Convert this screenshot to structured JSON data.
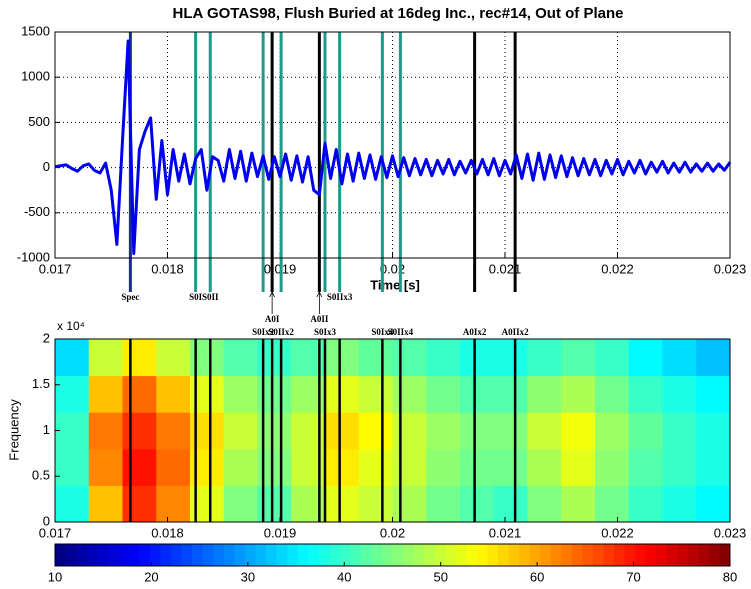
{
  "chart_data": [
    {
      "type": "line",
      "title": "HLA GOTAS98, Flush Buried at 16deg Inc., rec#14, Out of Plane",
      "x_label": "Time [s]",
      "x": [
        0.017,
        0.01705,
        0.0171,
        0.01715,
        0.0172,
        0.01725,
        0.0173,
        0.01735,
        0.0174,
        0.01745,
        0.0175,
        0.01755,
        0.0176,
        0.01765,
        0.0177,
        0.01775,
        0.0178,
        0.01785,
        0.0179,
        0.01795,
        0.018,
        0.01805,
        0.0181,
        0.01815,
        0.0182,
        0.01825,
        0.0183,
        0.01835,
        0.0184,
        0.01845,
        0.0185,
        0.01855,
        0.0186,
        0.01865,
        0.0187,
        0.01875,
        0.0188,
        0.01885,
        0.0189,
        0.01895,
        0.019,
        0.01905,
        0.0191,
        0.01915,
        0.0192,
        0.01925,
        0.0193,
        0.01935,
        0.0194,
        0.01945,
        0.0195,
        0.01955,
        0.0196,
        0.01965,
        0.0197,
        0.01975,
        0.0198,
        0.01985,
        0.0199,
        0.01995,
        0.02,
        0.02005,
        0.0201,
        0.02015,
        0.0202,
        0.02025,
        0.0203,
        0.02035,
        0.0204,
        0.02045,
        0.0205,
        0.02055,
        0.0206,
        0.02065,
        0.0207,
        0.02075,
        0.0208,
        0.02085,
        0.0209,
        0.02095,
        0.021,
        0.02105,
        0.0211,
        0.02115,
        0.0212,
        0.02125,
        0.0213,
        0.02135,
        0.0214,
        0.02145,
        0.0215,
        0.02155,
        0.0216,
        0.02165,
        0.0217,
        0.02175,
        0.0218,
        0.02185,
        0.0219,
        0.02195,
        0.022,
        0.02205,
        0.0221,
        0.02215,
        0.0222,
        0.02225,
        0.0223,
        0.02235,
        0.0224,
        0.02245,
        0.0225,
        0.02255,
        0.0226,
        0.02265,
        0.0227,
        0.02275,
        0.0228,
        0.02285,
        0.0229,
        0.02295,
        0.023
      ],
      "series": [
        {
          "color": "#0000ee",
          "values": [
            10,
            20,
            30,
            -10,
            -40,
            20,
            40,
            -30,
            -60,
            50,
            -250,
            -850,
            300,
            1400,
            -950,
            200,
            400,
            550,
            -350,
            300,
            -300,
            200,
            -150,
            150,
            -180,
            100,
            200,
            -250,
            120,
            80,
            -150,
            200,
            -120,
            180,
            -150,
            160,
            -100,
            130,
            -130,
            120,
            -100,
            150,
            -140,
            130,
            -160,
            120,
            -250,
            -300,
            270,
            -120,
            200,
            -180,
            150,
            -150,
            160,
            -120,
            140,
            -130,
            120,
            -110,
            130,
            -100,
            110,
            -90,
            100,
            -80,
            90,
            -90,
            80,
            -70,
            90,
            -80,
            70,
            -60,
            80,
            -70,
            90,
            -80,
            100,
            -90,
            80,
            -70,
            140,
            -120,
            150,
            -140,
            160,
            -130,
            140,
            -110,
            130,
            -100,
            110,
            -90,
            100,
            -80,
            90,
            -90,
            80,
            -70,
            90,
            -80,
            70,
            -60,
            80,
            -70,
            60,
            -50,
            70,
            -60,
            50,
            -50,
            60,
            -50,
            40,
            -40,
            50,
            -40,
            40,
            -30,
            60
          ]
        }
      ],
      "xlim": [
        0.017,
        0.023
      ],
      "xticks": [
        0.017,
        0.018,
        0.019,
        0.02,
        0.021,
        0.022,
        0.023
      ],
      "ylim": [
        -1000,
        1500
      ],
      "yticks": [
        -1000,
        -500,
        0,
        500,
        1000,
        1500
      ],
      "grid": true,
      "markers": [
        {
          "x": 0.01767,
          "label": "Spec",
          "color": "#1a2a9a"
        },
        {
          "x": 0.01825,
          "label": "S0I",
          "color": "#1f9a8a"
        },
        {
          "x": 0.01838,
          "label": "S0II",
          "color": "#1f9a8a"
        },
        {
          "x": 0.01885,
          "label": "S0Ix2",
          "color": "#1f9a8a"
        },
        {
          "x": 0.01893,
          "label": "A0I",
          "color": "#000000"
        },
        {
          "x": 0.01901,
          "label": "S0IIx2",
          "color": "#1f9a8a"
        },
        {
          "x": 0.01935,
          "label": "A0II",
          "color": "#000000"
        },
        {
          "x": 0.0194,
          "label": "S0Ix3",
          "color": "#1f9a8a"
        },
        {
          "x": 0.01953,
          "label": "S0IIx3",
          "color": "#1f9a8a"
        },
        {
          "x": 0.01991,
          "label": "S0Ix4",
          "color": "#1f9a8a"
        },
        {
          "x": 0.02007,
          "label": "S0IIx4",
          "color": "#1f9a8a"
        },
        {
          "x": 0.02073,
          "label": "A0Ix2",
          "color": "#000000"
        },
        {
          "x": 0.02109,
          "label": "A0IIx2",
          "color": "#000000"
        }
      ]
    },
    {
      "type": "heatmap",
      "y_label": "Frequency",
      "y_multiplier": "x 10⁴",
      "xbins": [
        0.017,
        0.0173,
        0.0176,
        0.0179,
        0.0182,
        0.0185,
        0.0188,
        0.0191,
        0.0194,
        0.0197,
        0.02,
        0.0203,
        0.0206,
        0.0209,
        0.0212,
        0.0215,
        0.0218,
        0.0221,
        0.0224,
        0.0227,
        0.023
      ],
      "ybins": [
        0,
        0.4,
        0.8,
        1.2,
        1.6,
        2
      ],
      "z": [
        [
          38,
          58,
          68,
          62,
          52,
          45,
          42,
          48,
          52,
          50,
          48,
          44,
          42,
          40,
          45,
          48,
          44,
          40,
          38,
          36
        ],
        [
          40,
          62,
          70,
          64,
          55,
          48,
          45,
          50,
          55,
          52,
          50,
          46,
          44,
          44,
          48,
          52,
          46,
          42,
          40,
          38
        ],
        [
          40,
          63,
          68,
          63,
          56,
          50,
          46,
          50,
          56,
          54,
          50,
          47,
          45,
          45,
          50,
          53,
          47,
          43,
          40,
          38
        ],
        [
          38,
          58,
          64,
          58,
          52,
          47,
          44,
          47,
          52,
          50,
          47,
          44,
          42,
          42,
          46,
          48,
          44,
          40,
          38,
          36
        ],
        [
          34,
          50,
          55,
          50,
          45,
          42,
          40,
          42,
          45,
          43,
          42,
          40,
          38,
          38,
          40,
          42,
          40,
          36,
          34,
          32
        ]
      ],
      "xlim": [
        0.017,
        0.023
      ],
      "xticks": [
        0.017,
        0.018,
        0.019,
        0.02,
        0.021,
        0.022,
        0.023
      ],
      "ylim": [
        0,
        2
      ],
      "yticks": [
        0,
        0.5,
        1,
        1.5,
        2
      ],
      "colorbar": {
        "lim": [
          10,
          80
        ],
        "ticks": [
          10,
          20,
          30,
          40,
          50,
          60,
          70,
          80
        ]
      }
    }
  ]
}
